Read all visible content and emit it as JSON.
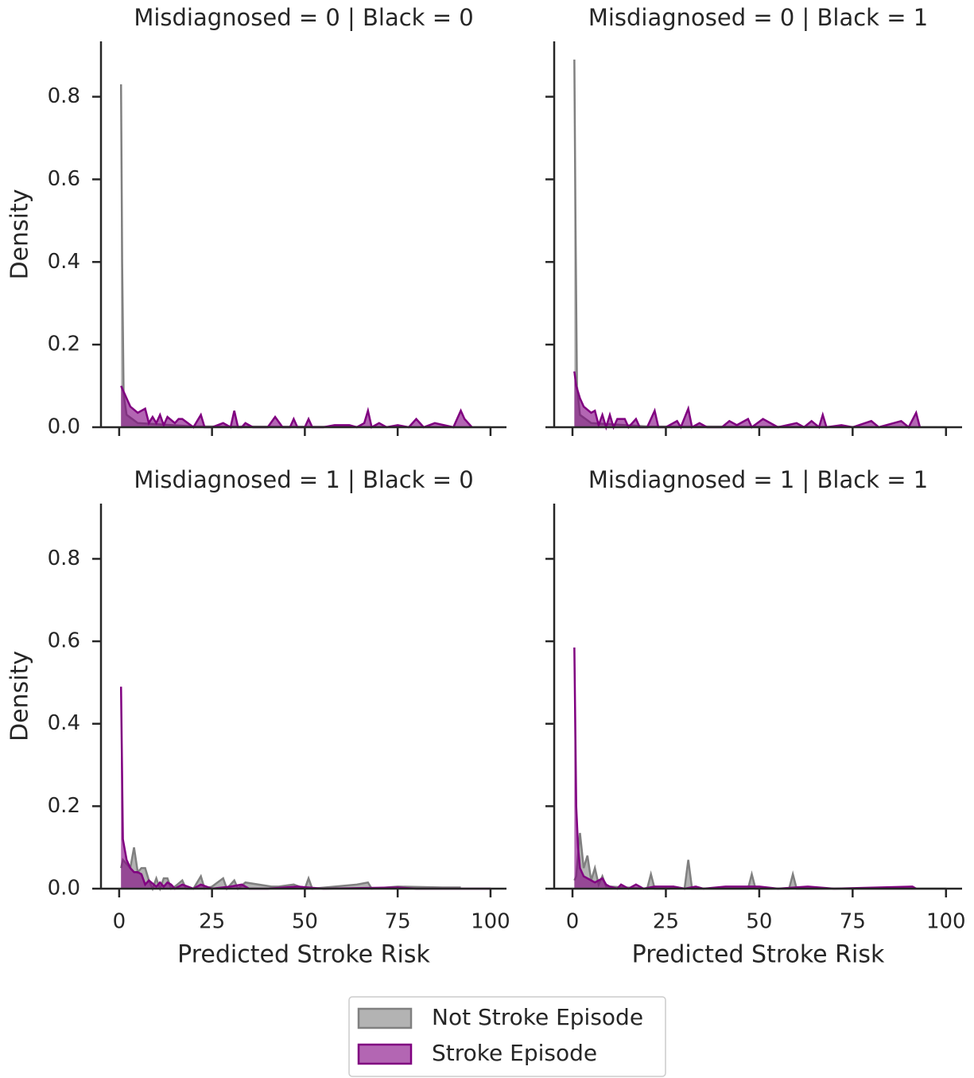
{
  "chart_data": [
    {
      "type": "area",
      "title": "Misdiagnosed = 0 | Black = 0",
      "ylabel": "Density",
      "xlim": [
        -4.9,
        104.3
      ],
      "ylim": [
        0,
        0.934
      ],
      "xticks": [
        0,
        25,
        50,
        75,
        100
      ],
      "yticks": [
        {
          "value": 0,
          "label": "0.0"
        },
        0.2,
        0.4,
        0.6,
        0.8
      ],
      "series": [
        {
          "name": "Not Stroke Episode",
          "color": "#808080",
          "x": [
            0.5,
            0.8,
            1.2,
            2,
            5,
            20,
            100
          ],
          "values": [
            0.83,
            0.4,
            0.08,
            0.03,
            0.01,
            0.002,
            0
          ]
        },
        {
          "name": "Stroke Episode",
          "color": "#800080",
          "x": [
            0.5,
            1,
            2,
            3,
            5,
            7,
            8,
            9,
            10,
            11,
            12,
            13,
            15,
            16,
            17,
            20,
            22,
            23,
            25,
            28,
            30,
            31,
            32,
            33,
            34,
            36,
            40,
            42,
            44,
            46,
            47,
            48,
            50,
            51,
            52,
            55,
            58,
            62,
            64,
            66,
            67,
            68,
            70,
            72,
            75,
            78,
            80,
            82,
            85,
            90,
            92,
            93,
            95
          ],
          "values": [
            0.1,
            0.09,
            0.07,
            0.05,
            0.035,
            0.045,
            0.01,
            0.025,
            0.01,
            0.03,
            0.005,
            0.025,
            0.01,
            0.02,
            0.02,
            0.0,
            0.03,
            0.0,
            0.0,
            0.01,
            0.0,
            0.04,
            0.0,
            0.0,
            0.01,
            0.0,
            0.0,
            0.025,
            0.0,
            0.0,
            0.02,
            0.0,
            0.0,
            0.02,
            0.0,
            0.0,
            0.005,
            0.005,
            0.0,
            0.01,
            0.04,
            0.0,
            0.01,
            0.0,
            0.005,
            0.0,
            0.02,
            0.0,
            0.01,
            0.0,
            0.04,
            0.02,
            0.0
          ]
        }
      ]
    },
    {
      "type": "area",
      "title": "Misdiagnosed = 0 | Black = 1",
      "xlim": [
        -4.9,
        104.3
      ],
      "ylim": [
        0,
        0.934
      ],
      "xticks": [
        0,
        25,
        50,
        75,
        100
      ],
      "yticks": [
        0,
        0.2,
        0.4,
        0.6,
        0.8
      ],
      "series": [
        {
          "name": "Not Stroke Episode",
          "color": "#808080",
          "x": [
            0.5,
            0.8,
            1.2,
            2,
            5,
            20,
            100
          ],
          "values": [
            0.89,
            0.5,
            0.1,
            0.03,
            0.01,
            0.002,
            0
          ]
        },
        {
          "name": "Stroke Episode",
          "color": "#800080",
          "x": [
            0.5,
            1,
            2,
            3,
            5,
            6,
            7,
            8,
            9,
            10,
            11,
            12,
            14,
            15,
            17,
            18,
            20,
            22,
            23,
            25,
            28,
            29,
            31,
            32,
            34,
            36,
            40,
            42,
            44,
            47,
            48,
            51,
            55,
            60,
            62,
            64,
            66,
            67,
            68,
            72,
            75,
            80,
            82,
            88,
            90,
            92,
            93
          ],
          "values": [
            0.135,
            0.1,
            0.07,
            0.05,
            0.035,
            0.04,
            0.005,
            0.03,
            0.0,
            0.03,
            0.0,
            0.02,
            0.02,
            0.0,
            0.02,
            0.0,
            0.0,
            0.04,
            0.0,
            0.0,
            0.015,
            0.0,
            0.045,
            0.0,
            0.01,
            0.0,
            0.0,
            0.015,
            0.005,
            0.02,
            0.0,
            0.02,
            0.0,
            0.01,
            0.0,
            0.015,
            0.0,
            0.03,
            0.0,
            0.005,
            0.0,
            0.015,
            0.0,
            0.015,
            0.0,
            0.035,
            0.0
          ]
        }
      ]
    },
    {
      "type": "area",
      "title": "Misdiagnosed = 1 | Black = 0",
      "ylabel": "Density",
      "xlabel": "Predicted Stroke Risk",
      "xlim": [
        -4.9,
        104.3
      ],
      "ylim": [
        0,
        0.934
      ],
      "xticks": [
        0,
        25,
        50,
        75,
        100
      ],
      "yticks": [
        {
          "value": 0,
          "label": "0.0"
        },
        0.2,
        0.4,
        0.6,
        0.8
      ],
      "series": [
        {
          "name": "Not Stroke Episode",
          "color": "#808080",
          "x": [
            0.5,
            1,
            2,
            3,
            4,
            5,
            6,
            7,
            8,
            9,
            10,
            11,
            12,
            13,
            14,
            15,
            17,
            18,
            20,
            22,
            23,
            25,
            28,
            29,
            31,
            32,
            34,
            41,
            43,
            47,
            50,
            51,
            52,
            64,
            67,
            68,
            75,
            87,
            92
          ],
          "values": [
            0.05,
            0.07,
            0.06,
            0.05,
            0.1,
            0.04,
            0.05,
            0.05,
            0.02,
            0.0,
            0.025,
            0.0,
            0.025,
            0.025,
            0.0,
            0.005,
            0.02,
            0.0,
            0.0,
            0.03,
            0.0,
            0.005,
            0.025,
            0.0,
            0.02,
            0.0,
            0.015,
            0.005,
            0.005,
            0.01,
            0.0,
            0.025,
            0.0,
            0.01,
            0.015,
            0.0,
            0.005,
            0.003,
            0.003
          ]
        },
        {
          "name": "Stroke Episode",
          "color": "#800080",
          "x": [
            0.5,
            1,
            2,
            3,
            4,
            5,
            6,
            7,
            8,
            10,
            11,
            12,
            13,
            14,
            15,
            17,
            20,
            22,
            25,
            30,
            33,
            35,
            40,
            48,
            55,
            75,
            80,
            100
          ],
          "values": [
            0.49,
            0.12,
            0.07,
            0.05,
            0.04,
            0.04,
            0.035,
            0.01,
            0.02,
            0.005,
            0.015,
            0.005,
            0.015,
            0.01,
            0.0,
            0.01,
            0.0,
            0.01,
            0.0,
            0.005,
            0.01,
            0.0,
            0.0,
            0.005,
            0.0,
            0.003,
            0.0,
            0.0
          ]
        }
      ]
    },
    {
      "type": "area",
      "title": "Misdiagnosed = 1 | Black = 1",
      "xlabel": "Predicted Stroke Risk",
      "xlim": [
        -4.9,
        104.3
      ],
      "ylim": [
        0,
        0.934
      ],
      "xticks": [
        0,
        25,
        50,
        75,
        100
      ],
      "yticks": [
        0,
        0.2,
        0.4,
        0.6,
        0.8
      ],
      "series": [
        {
          "name": "Not Stroke Episode",
          "color": "#808080",
          "x": [
            0.5,
            1,
            2,
            3,
            4,
            5,
            6,
            7,
            8,
            9,
            10,
            20,
            21,
            22,
            26,
            27,
            30,
            31,
            32,
            33,
            40,
            47,
            48,
            49,
            58,
            59,
            60,
            100
          ],
          "values": [
            0.02,
            0.03,
            0.135,
            0.05,
            0.08,
            0.02,
            0.05,
            0.01,
            0.03,
            0.005,
            0.005,
            0.0,
            0.035,
            0.0,
            0.0,
            0.005,
            0.0,
            0.07,
            0.0,
            0.0,
            0.0,
            0.0,
            0.035,
            0.0,
            0.0,
            0.035,
            0.0,
            0.0
          ]
        },
        {
          "name": "Stroke Episode",
          "color": "#800080",
          "x": [
            0.5,
            1,
            1.5,
            2,
            3,
            5,
            6,
            8,
            9,
            10,
            12,
            13,
            15,
            17,
            19,
            22,
            27,
            30,
            33,
            35,
            41,
            50,
            55,
            63,
            70,
            91,
            92
          ],
          "values": [
            0.585,
            0.2,
            0.1,
            0.05,
            0.03,
            0.02,
            0.015,
            0.025,
            0.01,
            0.005,
            0.0,
            0.01,
            0.0,
            0.01,
            0.0,
            0.005,
            0.005,
            0.0,
            0.005,
            0.0,
            0.005,
            0.005,
            0.0,
            0.005,
            0.0,
            0.005,
            0.0
          ]
        }
      ]
    }
  ]
}
